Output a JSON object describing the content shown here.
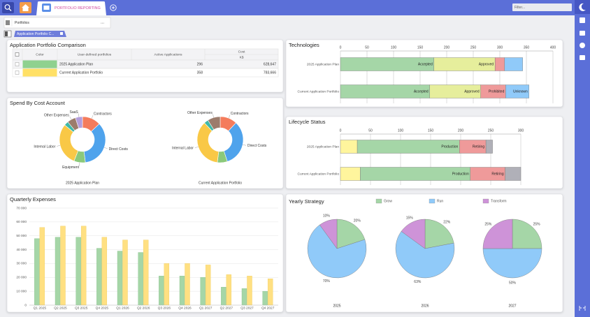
{
  "tabs": {
    "active": "PORTFOLIO REPORTING",
    "filter": "Filter..."
  },
  "portfolios": {
    "label": "Portfolios",
    "value": "..."
  },
  "subtab": "Application Portfolio C...",
  "comparison": {
    "title": "Application Portfolio Comparison",
    "columns": [
      "Color",
      "User-defined portfolios",
      "Active Applications",
      "Cost"
    ],
    "cost_unit": "K$",
    "rows": [
      {
        "color": "#8fd18f",
        "name": "2025 Application Plan",
        "active": 296,
        "cost": "628,647"
      },
      {
        "color": "#ffe066",
        "name": "Current Application Portfolio",
        "active": 358,
        "cost": "783,666"
      }
    ]
  },
  "chart_data": [
    {
      "type": "donut",
      "title": "Spend By Cost Account",
      "pies": [
        {
          "name": "2025 Application Plan",
          "categories": [
            "Contractors",
            "Direct Costs",
            "Equipment",
            "Internal Labor",
            null,
            "Other Expenses",
            "SaaS"
          ],
          "values": [
            13,
            35,
            8,
            30,
            3,
            6,
            5
          ],
          "colors": [
            "#f47c5c",
            "#4fa3ec",
            "#8bc97a",
            "#f9c846",
            "#3fb8a8",
            "#9c7c6c",
            "#b39ddb"
          ]
        },
        {
          "name": "Current Application Portfolio",
          "categories": [
            "Contractors",
            "Direct Costs",
            null,
            "Internal Labor",
            null,
            "Other Expenses"
          ],
          "values": [
            12,
            33,
            7,
            36,
            3,
            9
          ],
          "colors": [
            "#f47c5c",
            "#4fa3ec",
            "#8bc97a",
            "#f9c846",
            "#3fb8a8",
            "#9c7c6c"
          ]
        }
      ]
    },
    {
      "type": "bar",
      "title": "Quarterly Expenses",
      "categories": [
        "Q1 2025",
        "Q2 2025",
        "Q3 2025",
        "Q4 2025",
        "Q1 2026",
        "Q2 2026",
        "Q3 2026",
        "Q4 2026",
        "Q1 2027",
        "Q2 2027",
        "Q3 2027",
        "Q4 2027"
      ],
      "series": [
        {
          "color": "#a5d6a7",
          "values": [
            48000,
            49000,
            49000,
            41000,
            39000,
            38000,
            21000,
            21000,
            20000,
            13000,
            12000,
            10000
          ]
        },
        {
          "color": "#ffe082",
          "values": [
            56000,
            57000,
            57000,
            49000,
            47000,
            47000,
            30000,
            30000,
            29000,
            22000,
            21000,
            19000
          ]
        }
      ],
      "ylim": [
        0,
        70000
      ],
      "yticks": [
        0,
        {
          "value": 10000,
          "label": "10 000"
        },
        {
          "value": 20000,
          "label": "20 000"
        },
        {
          "value": 30000,
          "label": "30 000"
        },
        {
          "value": 40000,
          "label": "40 000"
        },
        {
          "value": 50000,
          "label": "50 000"
        },
        {
          "value": 60000,
          "label": "60 000"
        },
        {
          "value": 70000,
          "label": "70 000"
        }
      ],
      "grid": true
    },
    {
      "type": "hbar",
      "title": "Technologies",
      "categories": [
        "2025 Application Plan",
        "Current Application Portfolio"
      ],
      "series": [
        {
          "name": "Accepted",
          "color": "#a5d6a7",
          "values": [
            176,
            168
          ]
        },
        {
          "name": "Approved",
          "color": "#e6ee9c",
          "values": [
            115,
            96
          ]
        },
        {
          "name": "Prohibited",
          "color": "#ef9a9a",
          "values": [
            18,
            47
          ]
        },
        {
          "name": "Unknown",
          "color": "#90caf9",
          "values": [
            34,
            44
          ]
        }
      ],
      "xlim": [
        0,
        400
      ],
      "xticks": [
        0,
        50,
        100,
        150,
        200,
        250,
        300,
        350,
        400
      ],
      "grid": true
    },
    {
      "type": "hbar",
      "title": "Lifecycle Status",
      "categories": [
        "2025 Application Plan",
        "Current Application Portfolio"
      ],
      "series": [
        {
          "color": "#fff59d",
          "values": [
            28,
            33
          ]
        },
        {
          "name": "Production",
          "color": "#a5d6a7",
          "values": [
            170,
            183
          ]
        },
        {
          "name": "Retiring",
          "color": "#ef9a9a",
          "values": [
            44,
            58
          ]
        },
        {
          "color": "#b0b0b8",
          "values": [
            11,
            26
          ]
        }
      ],
      "xlim": [
        0,
        300
      ],
      "xticks": [
        0,
        50,
        100,
        150,
        200,
        250,
        300
      ],
      "grid": true
    },
    {
      "type": "pie",
      "title": "Yearly Strategy",
      "legend": "top",
      "categories": [
        "Grow",
        "Run",
        "Transform"
      ],
      "colors": [
        "#a5d6a7",
        "#90caf9",
        "#ce93d8"
      ],
      "pies": [
        {
          "name": "2025",
          "values": [
            20,
            70,
            10
          ],
          "value_labels": [
            "20%",
            "70%",
            "10%"
          ]
        },
        {
          "name": "2026",
          "values": [
            22,
            63,
            15
          ],
          "value_labels": [
            "22%",
            "63%",
            "15%"
          ]
        },
        {
          "name": "2027",
          "values": [
            25,
            50,
            25
          ],
          "value_labels": [
            "25%",
            "50%",
            "25%"
          ]
        }
      ]
    }
  ]
}
